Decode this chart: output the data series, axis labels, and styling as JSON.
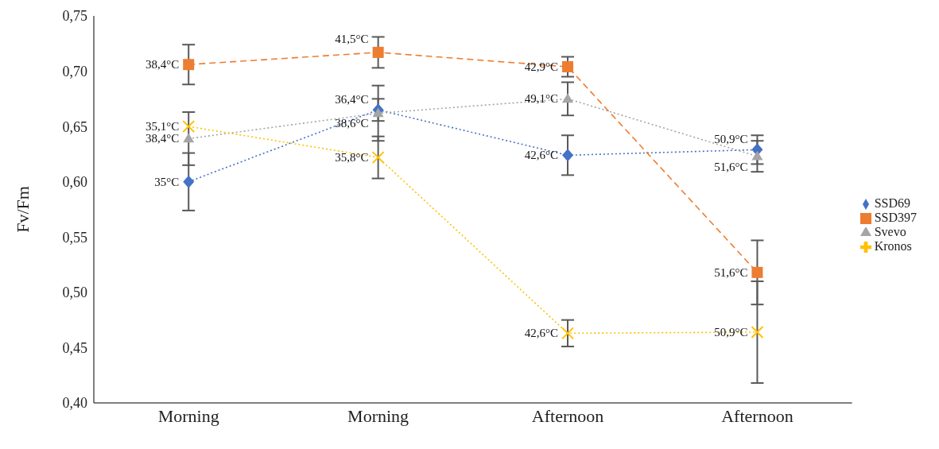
{
  "chart_data": {
    "type": "line",
    "categories": [
      "Morning",
      "Morning",
      "Afternoon",
      "Afternoon"
    ],
    "ylabel": "Fv/Fm",
    "ylim": [
      0.4,
      0.75
    ],
    "yticks": [
      {
        "value": 0.4,
        "label": "0,40"
      },
      {
        "value": 0.45,
        "label": "0,45"
      },
      {
        "value": 0.5,
        "label": "0,50"
      },
      {
        "value": 0.55,
        "label": "0,55"
      },
      {
        "value": 0.6,
        "label": "0,60"
      },
      {
        "value": 0.65,
        "label": "0,65"
      },
      {
        "value": 0.7,
        "label": "0,70"
      },
      {
        "value": 0.75,
        "label": "0,75"
      }
    ],
    "legend": "right",
    "grid": false,
    "series": [
      {
        "name": "SSD69",
        "color": "#4472c4",
        "marker": "diamond",
        "line_style": "dotted",
        "values": [
          0.6,
          0.665,
          0.624,
          0.629
        ],
        "errors": [
          0.026,
          0.01,
          0.018,
          0.013
        ]
      },
      {
        "name": "SSD397",
        "color": "#ed7d31",
        "marker": "square",
        "line_style": "dashed",
        "values": [
          0.706,
          0.717,
          0.704,
          0.518
        ],
        "errors": [
          0.018,
          0.014,
          0.009,
          0.029
        ]
      },
      {
        "name": "Svevo",
        "color": "#a5a5a5",
        "marker": "triangle",
        "line_style": "dotted",
        "values": [
          0.639,
          0.662,
          0.675,
          0.623
        ],
        "errors": [
          0.024,
          0.025,
          0.015,
          0.014
        ]
      },
      {
        "name": "Kronos",
        "color": "#ffc000",
        "marker": "cross",
        "line_style": "dotted",
        "values": [
          0.65,
          0.622,
          0.463,
          0.464
        ],
        "errors": [
          null,
          0.019,
          0.012,
          0.046
        ]
      }
    ],
    "annotations": [
      "35°C",
      "36,4°C",
      "42,6°C",
      "50,9°C",
      "38,4°C",
      "41,5°C",
      "42,9°C",
      "51,6°C",
      "38,4°C",
      "38,6°C",
      "49,1°C",
      "51,6°C",
      "35,1°C",
      "35,8°C",
      "42,6°C",
      "50,9°C"
    ]
  }
}
